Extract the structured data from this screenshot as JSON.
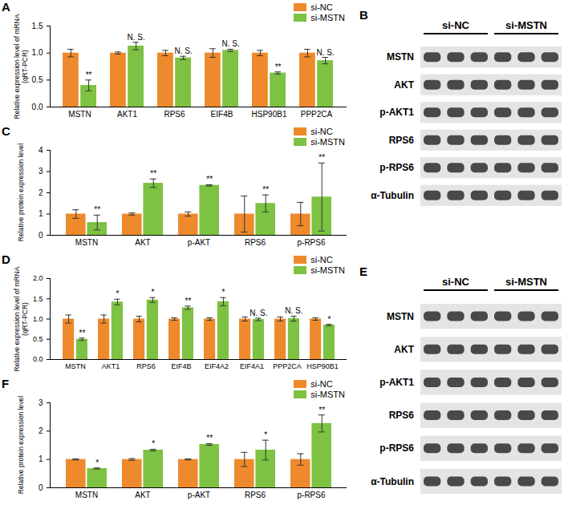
{
  "chart_data": [
    {
      "type": "bar",
      "title": "A",
      "y_label": "Relative expression level of mRNA\n(qRT-PCR)",
      "categories": [
        "MSTN",
        "AKT1",
        "RPS6",
        "EIF4B",
        "HSP90B1",
        "PPP2CA"
      ],
      "series": [
        {
          "name": "si-NC",
          "color": "#EE8A2C",
          "values": [
            1.0,
            1.0,
            1.0,
            1.0,
            1.0,
            1.0
          ],
          "errors": [
            0.07,
            0.02,
            0.05,
            0.08,
            0.05,
            0.07
          ]
        },
        {
          "name": "si-MSTN",
          "color": "#7DC242",
          "values": [
            0.4,
            1.13,
            0.91,
            1.05,
            0.63,
            0.86
          ],
          "errors": [
            0.1,
            0.07,
            0.03,
            0.02,
            0.02,
            0.06
          ]
        }
      ],
      "annotations": [
        "**",
        "N. S.",
        "N. S.",
        "N. S.",
        "**",
        "N. S."
      ],
      "ylim": [
        0,
        1.5
      ],
      "yticks": [
        {
          "value": 0,
          "label": "0.0"
        },
        0.5,
        {
          "value": 1,
          "label": "1.0"
        },
        1.5
      ],
      "legend": "top-right"
    },
    {
      "type": "bar",
      "title": "C",
      "y_label": "Relative protein expression level",
      "categories": [
        "MSTN",
        "AKT",
        "p-AKT",
        "RPS6",
        "p-RPS6"
      ],
      "series": [
        {
          "name": "si-NC",
          "color": "#EE8A2C",
          "values": [
            1.0,
            1.0,
            1.0,
            1.0,
            1.0
          ],
          "errors": [
            0.2,
            0.05,
            0.1,
            0.85,
            0.55
          ]
        },
        {
          "name": "si-MSTN",
          "color": "#7DC242",
          "values": [
            0.6,
            2.45,
            2.35,
            1.5,
            1.8
          ],
          "errors": [
            0.35,
            0.2,
            0.03,
            0.4,
            1.6
          ]
        }
      ],
      "annotations": [
        "**",
        "**",
        "**",
        "**",
        "**"
      ],
      "ylim": [
        0,
        4
      ],
      "yticks": [
        0,
        1,
        2,
        3,
        4
      ],
      "legend": "top-right"
    },
    {
      "type": "bar",
      "title": "D",
      "y_label": "Relative expression level of mRNA\n(qRT-PCR)",
      "categories": [
        "MSTN",
        "AKT1",
        "RPS6",
        "EIF4B",
        "EIF4A2",
        "EIF4A1",
        "PPP2CA",
        "HSP90B1"
      ],
      "series": [
        {
          "name": "si-NC",
          "color": "#EE8A2C",
          "values": [
            1.0,
            1.0,
            1.0,
            1.0,
            1.0,
            1.0,
            1.0,
            1.0
          ],
          "errors": [
            0.1,
            0.1,
            0.07,
            0.03,
            0.03,
            0.05,
            0.05,
            0.03
          ]
        },
        {
          "name": "si-MSTN",
          "color": "#7DC242",
          "values": [
            0.5,
            1.42,
            1.47,
            1.28,
            1.43,
            0.99,
            1.01,
            0.85
          ],
          "errors": [
            0.03,
            0.07,
            0.06,
            0.04,
            0.1,
            0.03,
            0.06,
            0.02
          ]
        }
      ],
      "annotations": [
        "**",
        "*",
        "*",
        "**",
        "*",
        "N. S.",
        "N. S.",
        "*"
      ],
      "ylim": [
        0,
        2
      ],
      "yticks": [
        {
          "value": 0,
          "label": "0.0"
        },
        0.5,
        {
          "value": 1,
          "label": "1.0"
        },
        1.5,
        {
          "value": 2,
          "label": "2.0"
        }
      ],
      "legend": "top-right"
    },
    {
      "type": "bar",
      "title": "F",
      "y_label": "Relative protein expression level",
      "categories": [
        "MSTN",
        "AKT",
        "p-AKT",
        "RPS6",
        "p-RPS6"
      ],
      "series": [
        {
          "name": "si-NC",
          "color": "#EE8A2C",
          "values": [
            1.0,
            1.0,
            1.0,
            1.0,
            1.0
          ],
          "errors": [
            0.02,
            0.03,
            0.02,
            0.25,
            0.2
          ]
        },
        {
          "name": "si-MSTN",
          "color": "#7DC242",
          "values": [
            0.68,
            1.33,
            1.53,
            1.33,
            2.27
          ],
          "errors": [
            0.02,
            0.03,
            0.03,
            0.35,
            0.3
          ]
        }
      ],
      "annotations": [
        "*",
        "*",
        "**",
        "*",
        "**"
      ],
      "ylim": [
        0,
        3
      ],
      "yticks": [
        0,
        1,
        2,
        3
      ],
      "legend": "top-right"
    }
  ],
  "blots": [
    {
      "title": "B",
      "groups": [
        {
          "label": "si-NC",
          "lanes": 3
        },
        {
          "label": "si-MSTN",
          "lanes": 3
        }
      ],
      "rows": [
        "MSTN",
        "AKT",
        "p-AKT1",
        "RPS6",
        "p-RPS6",
        "α-Tubulin"
      ]
    },
    {
      "title": "E",
      "groups": [
        {
          "label": "si-NC",
          "lanes": 3
        },
        {
          "label": "si-MSTN",
          "lanes": 3
        }
      ],
      "rows": [
        "MSTN",
        "AKT",
        "p-AKT1",
        "RPS6",
        "p-RPS6",
        "α-Tubulin"
      ]
    }
  ]
}
